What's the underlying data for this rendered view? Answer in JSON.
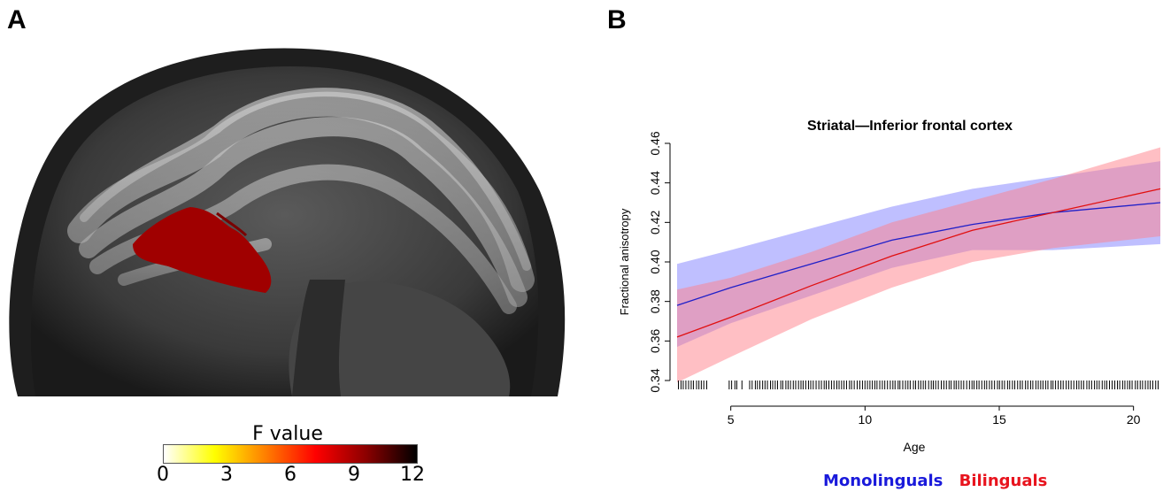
{
  "panel_a": {
    "letter": "A",
    "colorbar": {
      "title": "F value",
      "ticks": [
        "0",
        "3",
        "6",
        "9",
        "12"
      ],
      "colors": [
        "#ffffff",
        "#ffff00",
        "#ff8000",
        "#ff0000",
        "#8b0000",
        "#000000"
      ]
    }
  },
  "panel_b": {
    "letter": "B",
    "legend": [
      {
        "label": "Monolinguals",
        "color": "#1a1adb"
      },
      {
        "label": "Bilinguals",
        "color": "#e8141e"
      }
    ]
  },
  "chart_data": {
    "type": "line",
    "title": "Striatal—Inferior frontal cortex",
    "xlabel": "Age",
    "ylabel": "Fractional anisotropy",
    "xlim": [
      3,
      21
    ],
    "ylim": [
      0.34,
      0.46
    ],
    "xticks": [
      5,
      10,
      15,
      20
    ],
    "yticks": [
      "0.34",
      "0.36",
      "0.38",
      "0.40",
      "0.42",
      "0.44",
      "0.46"
    ],
    "grid": false,
    "legend_position": "bottom",
    "series": [
      {
        "name": "Monolinguals",
        "color": "#2020c8",
        "band_color": "#8080ff",
        "x": [
          3,
          5,
          8,
          11,
          14,
          17,
          21
        ],
        "y": [
          0.378,
          0.387,
          0.399,
          0.411,
          0.419,
          0.425,
          0.43
        ],
        "lower": [
          0.357,
          0.369,
          0.383,
          0.397,
          0.406,
          0.406,
          0.409
        ],
        "upper": [
          0.399,
          0.406,
          0.417,
          0.428,
          0.437,
          0.443,
          0.451
        ]
      },
      {
        "name": "Bilinguals",
        "color": "#e01010",
        "band_color": "#ff7f8a",
        "x": [
          3,
          5,
          8,
          11,
          14,
          17,
          21
        ],
        "y": [
          0.362,
          0.372,
          0.388,
          0.403,
          0.416,
          0.425,
          0.437
        ],
        "lower": [
          0.339,
          0.352,
          0.371,
          0.387,
          0.4,
          0.407,
          0.413
        ],
        "upper": [
          0.386,
          0.392,
          0.405,
          0.42,
          0.431,
          0.442,
          0.458
        ]
      }
    ]
  }
}
